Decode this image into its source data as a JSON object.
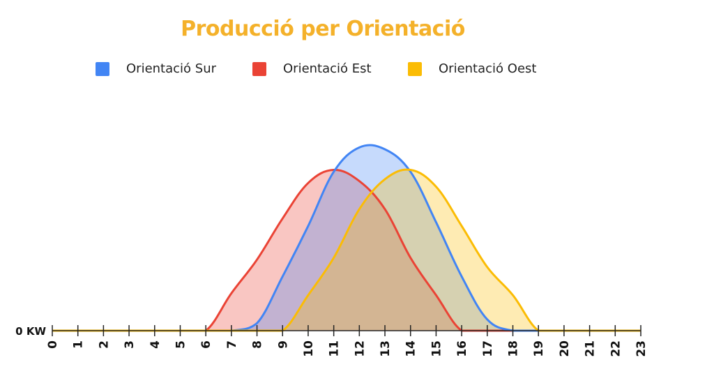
{
  "chart_data": {
    "type": "area",
    "title": "Producció per Orientació",
    "ylabel": "",
    "xlabel": "",
    "y_tick_label": "0 KW",
    "x": [
      0,
      1,
      2,
      3,
      4,
      5,
      6,
      7,
      8,
      9,
      10,
      11,
      12,
      13,
      14,
      15,
      16,
      17,
      18,
      19,
      20,
      21,
      22,
      23
    ],
    "xlim": [
      0,
      23
    ],
    "ylim": [
      0,
      100
    ],
    "grid": false,
    "legend_position": "top",
    "series": [
      {
        "name": "Orientació Sur",
        "color": "#4285f4",
        "values": [
          0,
          0,
          0,
          0,
          0,
          0,
          0,
          0,
          4,
          29,
          56,
          85,
          98,
          97,
          85,
          58,
          29,
          6,
          0,
          0,
          0,
          0,
          0,
          0
        ]
      },
      {
        "name": "Orientació Est",
        "color": "#ea4335",
        "values": [
          0,
          0,
          0,
          0,
          0,
          0,
          0,
          20,
          38,
          60,
          79,
          86,
          80,
          65,
          39,
          19,
          0,
          0,
          0,
          0,
          0,
          0,
          0,
          0
        ]
      },
      {
        "name": "Orientació Oest",
        "color": "#fbbc04",
        "values": [
          0,
          0,
          0,
          0,
          0,
          0,
          0,
          0,
          0,
          0,
          19,
          39,
          65,
          81,
          86,
          77,
          56,
          34,
          19,
          0,
          0,
          0,
          0,
          0
        ]
      }
    ]
  }
}
